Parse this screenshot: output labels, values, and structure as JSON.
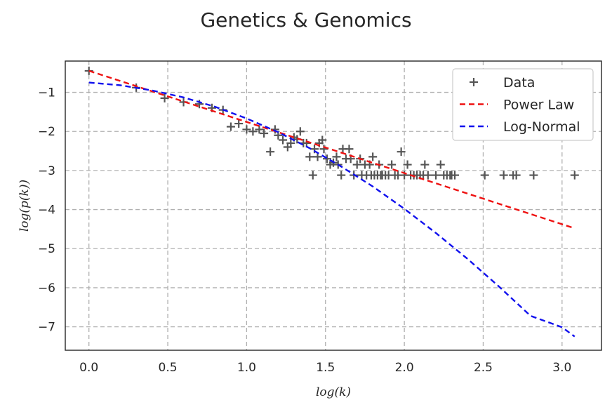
{
  "chart_data": {
    "type": "scatter",
    "title": "Genetics & Genomics",
    "xlabel": "log(k)",
    "ylabel": "log(p(k))",
    "xlim": [
      -0.15,
      3.25
    ],
    "ylim": [
      -7.6,
      -0.2
    ],
    "xticks": [
      0.0,
      0.5,
      1.0,
      1.5,
      2.0,
      2.5,
      3.0
    ],
    "yticks": [
      -1,
      -2,
      -3,
      -4,
      -5,
      -6,
      -7
    ],
    "xtick_labels": [
      "0.0",
      "0.5",
      "1.0",
      "1.5",
      "2.0",
      "2.5",
      "3.0"
    ],
    "ytick_labels": [
      "−1",
      "−2",
      "−3",
      "−4",
      "−5",
      "−6",
      "−7"
    ],
    "grid": true,
    "legend_position": "top-right",
    "series": [
      {
        "name": "Data",
        "kind": "scatter",
        "marker": "plus",
        "color": "#555555",
        "points": [
          [
            0.0,
            -0.45
          ],
          [
            0.3,
            -0.88
          ],
          [
            0.48,
            -1.15
          ],
          [
            0.6,
            -1.25
          ],
          [
            0.7,
            -1.3
          ],
          [
            0.78,
            -1.4
          ],
          [
            0.85,
            -1.45
          ],
          [
            0.9,
            -1.88
          ],
          [
            0.95,
            -1.8
          ],
          [
            1.0,
            -1.95
          ],
          [
            1.04,
            -2.0
          ],
          [
            1.08,
            -1.95
          ],
          [
            1.11,
            -2.05
          ],
          [
            1.15,
            -2.52
          ],
          [
            1.18,
            -1.95
          ],
          [
            1.2,
            -2.1
          ],
          [
            1.23,
            -2.22
          ],
          [
            1.26,
            -2.4
          ],
          [
            1.28,
            -2.3
          ],
          [
            1.3,
            -2.15
          ],
          [
            1.32,
            -2.2
          ],
          [
            1.34,
            -2.0
          ],
          [
            1.36,
            -2.3
          ],
          [
            1.38,
            -2.3
          ],
          [
            1.4,
            -2.65
          ],
          [
            1.42,
            -3.12
          ],
          [
            1.43,
            -2.45
          ],
          [
            1.45,
            -2.65
          ],
          [
            1.46,
            -2.3
          ],
          [
            1.48,
            -2.22
          ],
          [
            1.49,
            -2.45
          ],
          [
            1.51,
            -2.7
          ],
          [
            1.53,
            -2.85
          ],
          [
            1.55,
            -2.8
          ],
          [
            1.57,
            -2.65
          ],
          [
            1.58,
            -2.85
          ],
          [
            1.6,
            -3.12
          ],
          [
            1.61,
            -2.45
          ],
          [
            1.63,
            -2.7
          ],
          [
            1.65,
            -2.45
          ],
          [
            1.66,
            -2.7
          ],
          [
            1.68,
            -3.12
          ],
          [
            1.7,
            -2.85
          ],
          [
            1.72,
            -2.7
          ],
          [
            1.73,
            -3.12
          ],
          [
            1.75,
            -2.85
          ],
          [
            1.76,
            -3.12
          ],
          [
            1.78,
            -2.85
          ],
          [
            1.79,
            -3.12
          ],
          [
            1.8,
            -2.65
          ],
          [
            1.81,
            -3.12
          ],
          [
            1.83,
            -3.12
          ],
          [
            1.84,
            -2.85
          ],
          [
            1.85,
            -3.12
          ],
          [
            1.86,
            -3.12
          ],
          [
            1.88,
            -3.12
          ],
          [
            1.9,
            -3.12
          ],
          [
            1.92,
            -2.85
          ],
          [
            1.94,
            -3.12
          ],
          [
            1.96,
            -3.12
          ],
          [
            1.98,
            -2.52
          ],
          [
            2.0,
            -3.12
          ],
          [
            2.02,
            -2.85
          ],
          [
            2.04,
            -3.12
          ],
          [
            2.06,
            -3.12
          ],
          [
            2.08,
            -3.12
          ],
          [
            2.1,
            -3.12
          ],
          [
            2.12,
            -3.12
          ],
          [
            2.13,
            -2.85
          ],
          [
            2.15,
            -3.12
          ],
          [
            2.2,
            -3.12
          ],
          [
            2.23,
            -2.85
          ],
          [
            2.25,
            -3.12
          ],
          [
            2.27,
            -3.12
          ],
          [
            2.29,
            -3.12
          ],
          [
            2.3,
            -3.12
          ],
          [
            2.32,
            -3.12
          ],
          [
            2.51,
            -3.12
          ],
          [
            2.63,
            -3.12
          ],
          [
            2.69,
            -3.12
          ],
          [
            2.71,
            -3.12
          ],
          [
            2.82,
            -3.12
          ],
          [
            3.08,
            -3.12
          ]
        ]
      },
      {
        "name": "Power Law",
        "kind": "line",
        "style": "dashed",
        "color": "#ee1111",
        "points": [
          [
            0.0,
            -0.45
          ],
          [
            3.08,
            -4.48
          ]
        ]
      },
      {
        "name": "Log-Normal",
        "kind": "line",
        "style": "dashed",
        "color": "#1111ee",
        "points": [
          [
            0.0,
            -0.75
          ],
          [
            0.2,
            -0.82
          ],
          [
            0.4,
            -0.95
          ],
          [
            0.6,
            -1.13
          ],
          [
            0.8,
            -1.37
          ],
          [
            1.0,
            -1.67
          ],
          [
            1.2,
            -2.02
          ],
          [
            1.4,
            -2.43
          ],
          [
            1.6,
            -2.9
          ],
          [
            1.8,
            -3.41
          ],
          [
            2.0,
            -3.98
          ],
          [
            2.2,
            -4.6
          ],
          [
            2.4,
            -5.26
          ],
          [
            2.6,
            -5.97
          ],
          [
            2.8,
            -6.72
          ],
          [
            3.0,
            -7.01
          ],
          [
            3.08,
            -7.25
          ]
        ]
      }
    ]
  }
}
